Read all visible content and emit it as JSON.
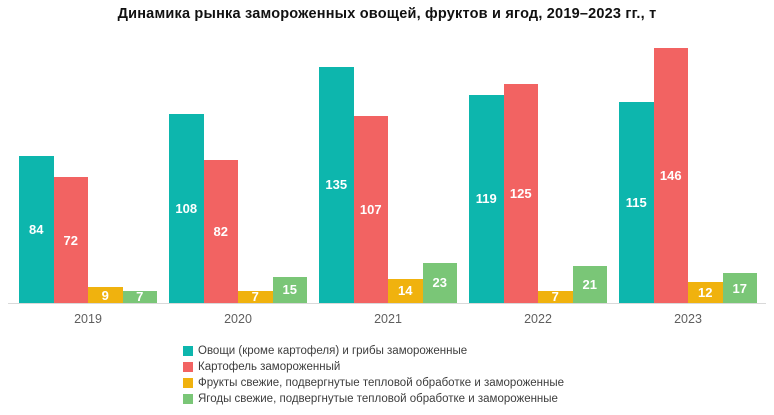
{
  "chart": {
    "title": "Динамика рынка замороженных овощей, фруктов и ягод, 2019–2023 гг., т"
  },
  "chart_data": {
    "type": "bar",
    "title": "Динамика рынка замороженных овощей, фруктов и ягод, 2019–2023 гг., т",
    "xlabel": "",
    "ylabel": "",
    "categories": [
      "2019",
      "2020",
      "2021",
      "2022",
      "2023"
    ],
    "series": [
      {
        "name": "Овощи (кроме картофеля) и грибы замороженные",
        "color": "#0DB6AD",
        "values": [
          84,
          108,
          135,
          119,
          115
        ]
      },
      {
        "name": "Картофель замороженный",
        "color": "#F26362",
        "values": [
          72,
          82,
          107,
          125,
          146
        ]
      },
      {
        "name": "Фрукты свежие, подвергнутые тепловой обработке и замороженные",
        "color": "#F0B20E",
        "values": [
          9,
          7,
          14,
          7,
          12
        ]
      },
      {
        "name": "Ягоды свежие, подвергнутые тепловой обработке и замороженные",
        "color": "#7AC677",
        "values": [
          7,
          15,
          23,
          21,
          17
        ]
      }
    ],
    "ylim": [
      0,
      146
    ],
    "grid": false,
    "data_labels": true,
    "legend_position": "bottom",
    "axis_line_color": "#D9D9D9",
    "x_tick_color": "#5F5F5F",
    "legend_text_color": "#3D3D3D",
    "data_label_color": "#FFFFFF"
  }
}
